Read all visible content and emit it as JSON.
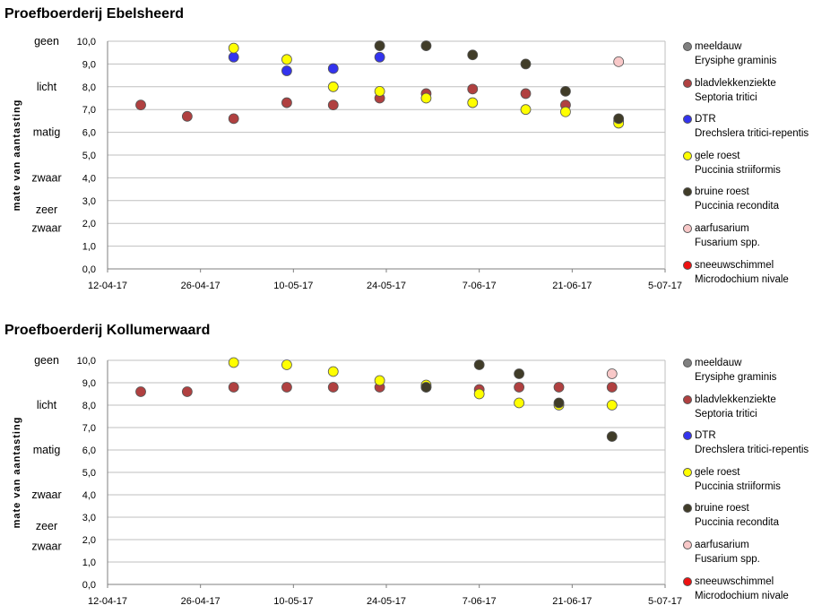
{
  "series_styles": [
    {
      "name": "meeldauw",
      "sci": "Erysiphe graminis",
      "color": "#808080"
    },
    {
      "name": "bladvlekkenziekte",
      "sci": "Septoria tritici",
      "color": "#B04040"
    },
    {
      "name": "DTR",
      "sci": "Drechslera tritici-repentis",
      "color": "#3333EE"
    },
    {
      "name": "gele roest",
      "sci": "Puccinia striiformis",
      "color": "#FFFF00"
    },
    {
      "name": "bruine roest",
      "sci": "Puccinia recondita",
      "color": "#403C28"
    },
    {
      "name": "aarfusarium",
      "sci": "Fusarium spp.",
      "color": "#F8C8C8"
    },
    {
      "name": "sneeuwschimmel",
      "sci": "Microdochium nivale",
      "color": "#EE1111"
    }
  ],
  "chart_data": [
    {
      "type": "scatter",
      "title": "Proefboerderij Ebelsheerd",
      "ylabel": "mate van aantasting",
      "ylim": [
        0,
        10
      ],
      "xlim": [
        "2017-04-12",
        "2017-07-05"
      ],
      "x_tick_labels": [
        "12-04-17",
        "26-04-17",
        "10-05-17",
        "24-05-17",
        "7-06-17",
        "21-06-17",
        "5-07-17"
      ],
      "y_tick_labels": [
        "0,0",
        "1,0",
        "2,0",
        "3,0",
        "4,0",
        "5,0",
        "6,0",
        "7,0",
        "8,0",
        "9,0",
        "10,0"
      ],
      "qualitative_labels": [
        {
          "text": "geen",
          "y": 10.0
        },
        {
          "text": "licht",
          "y": 8.0
        },
        {
          "text": "matig",
          "y": 6.0
        },
        {
          "text": "zwaar",
          "y": 4.0
        },
        {
          "text": "zeer",
          "y": 2.6
        },
        {
          "text": "zwaar",
          "y": 1.8
        }
      ],
      "grid": "horizontal",
      "legend": "right",
      "series": [
        {
          "name": "meeldauw",
          "points": []
        },
        {
          "name": "bladvlekkenziekte",
          "points": [
            [
              "2017-04-17",
              7.2
            ],
            [
              "2017-04-24",
              6.7
            ],
            [
              "2017-05-01",
              6.6
            ],
            [
              "2017-05-09",
              7.3
            ],
            [
              "2017-05-16",
              7.2
            ],
            [
              "2017-05-23",
              7.5
            ],
            [
              "2017-05-30",
              7.7
            ],
            [
              "2017-06-06",
              7.9
            ],
            [
              "2017-06-14",
              7.7
            ],
            [
              "2017-06-20",
              7.2
            ],
            [
              "2017-06-28",
              6.5
            ]
          ]
        },
        {
          "name": "DTR",
          "points": [
            [
              "2017-05-01",
              9.3
            ],
            [
              "2017-05-09",
              8.7
            ],
            [
              "2017-05-16",
              8.8
            ],
            [
              "2017-05-23",
              9.3
            ]
          ]
        },
        {
          "name": "gele roest",
          "points": [
            [
              "2017-05-01",
              9.7
            ],
            [
              "2017-05-09",
              9.2
            ],
            [
              "2017-05-16",
              8.0
            ],
            [
              "2017-05-23",
              7.8
            ],
            [
              "2017-05-30",
              7.5
            ],
            [
              "2017-06-06",
              7.3
            ],
            [
              "2017-06-14",
              7.0
            ],
            [
              "2017-06-20",
              6.9
            ],
            [
              "2017-06-28",
              6.4
            ]
          ]
        },
        {
          "name": "bruine roest",
          "points": [
            [
              "2017-05-23",
              9.8
            ],
            [
              "2017-05-30",
              9.8
            ],
            [
              "2017-06-06",
              9.4
            ],
            [
              "2017-06-14",
              9.0
            ],
            [
              "2017-06-20",
              7.8
            ],
            [
              "2017-06-28",
              6.6
            ]
          ]
        },
        {
          "name": "aarfusarium",
          "points": [
            [
              "2017-06-28",
              9.1
            ]
          ]
        },
        {
          "name": "sneeuwschimmel",
          "points": []
        }
      ]
    },
    {
      "type": "scatter",
      "title": "Proefboerderij Kollumerwaard",
      "ylabel": "mate van aantasting",
      "ylim": [
        0,
        10
      ],
      "xlim": [
        "2017-04-12",
        "2017-07-05"
      ],
      "x_tick_labels": [
        "12-04-17",
        "26-04-17",
        "10-05-17",
        "24-05-17",
        "7-06-17",
        "21-06-17",
        "5-07-17"
      ],
      "y_tick_labels": [
        "0,0",
        "1,0",
        "2,0",
        "3,0",
        "4,0",
        "5,0",
        "6,0",
        "7,0",
        "8,0",
        "9,0",
        "10,0"
      ],
      "qualitative_labels": [
        {
          "text": "geen",
          "y": 10.0
        },
        {
          "text": "licht",
          "y": 8.0
        },
        {
          "text": "matig",
          "y": 6.0
        },
        {
          "text": "zwaar",
          "y": 4.0
        },
        {
          "text": "zeer",
          "y": 2.6
        },
        {
          "text": "zwaar",
          "y": 1.7
        }
      ],
      "grid": "horizontal",
      "legend": "right",
      "series": [
        {
          "name": "meeldauw",
          "points": []
        },
        {
          "name": "bladvlekkenziekte",
          "points": [
            [
              "2017-04-17",
              8.6
            ],
            [
              "2017-04-24",
              8.6
            ],
            [
              "2017-05-01",
              8.8
            ],
            [
              "2017-05-09",
              8.8
            ],
            [
              "2017-05-16",
              8.8
            ],
            [
              "2017-05-23",
              8.8
            ],
            [
              "2017-05-30",
              8.8
            ],
            [
              "2017-06-07",
              8.7
            ],
            [
              "2017-06-13",
              8.8
            ],
            [
              "2017-06-19",
              8.8
            ],
            [
              "2017-06-27",
              8.8
            ]
          ]
        },
        {
          "name": "DTR",
          "points": []
        },
        {
          "name": "gele roest",
          "points": [
            [
              "2017-05-01",
              9.9
            ],
            [
              "2017-05-09",
              9.8
            ],
            [
              "2017-05-16",
              9.5
            ],
            [
              "2017-05-23",
              9.1
            ],
            [
              "2017-05-30",
              8.9
            ],
            [
              "2017-06-07",
              8.5
            ],
            [
              "2017-06-13",
              8.1
            ],
            [
              "2017-06-19",
              8.0
            ],
            [
              "2017-06-27",
              8.0
            ]
          ]
        },
        {
          "name": "bruine roest",
          "points": [
            [
              "2017-05-30",
              8.8
            ],
            [
              "2017-06-07",
              9.8
            ],
            [
              "2017-06-13",
              9.4
            ],
            [
              "2017-06-19",
              8.1
            ],
            [
              "2017-06-27",
              6.6
            ]
          ]
        },
        {
          "name": "aarfusarium",
          "points": [
            [
              "2017-06-27",
              9.4
            ]
          ]
        },
        {
          "name": "sneeuwschimmel",
          "points": []
        }
      ]
    }
  ]
}
